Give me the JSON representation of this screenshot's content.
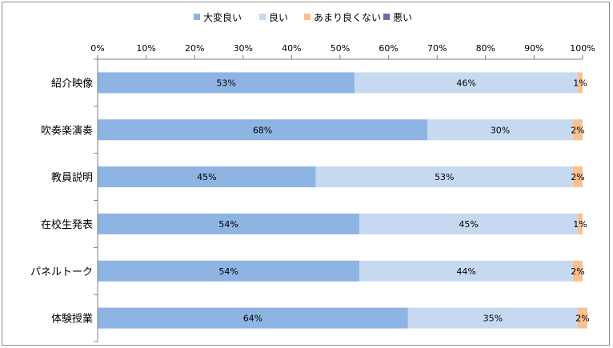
{
  "chart_data": {
    "type": "bar",
    "orientation": "horizontal",
    "stacked": "percent",
    "categories": [
      "紹介映像",
      "吹奏楽演奏",
      "教員説明",
      "在校生発表",
      "パネルトーク",
      "体験授業"
    ],
    "series": [
      {
        "name": "大変良い",
        "color": "#8eb4e3",
        "values": [
          53,
          68,
          45,
          54,
          54,
          64
        ]
      },
      {
        "name": "良い",
        "color": "#c6d9f1",
        "values": [
          46,
          30,
          53,
          45,
          44,
          35
        ]
      },
      {
        "name": "あまり良くない",
        "color": "#fac090",
        "values": [
          1,
          2,
          2,
          1,
          2,
          2
        ]
      },
      {
        "name": "悪い",
        "color": "#8064a2",
        "values": [
          0,
          0,
          0,
          0,
          0,
          0
        ]
      }
    ],
    "data_labels": [
      [
        "53%",
        "68%",
        "45%",
        "54%",
        "54%",
        "64%"
      ],
      [
        "46%",
        "30%",
        "53%",
        "45%",
        "44%",
        "35%"
      ],
      [
        "1%",
        "2%",
        "2%",
        "1%",
        "2%",
        "2%"
      ],
      [
        "",
        "",
        "",
        "",
        "",
        ""
      ]
    ],
    "xticks": [
      "0%",
      "10%",
      "20%",
      "30%",
      "40%",
      "50%",
      "60%",
      "70%",
      "80%",
      "90%",
      "100%"
    ],
    "xlim": [
      0,
      100
    ],
    "title": "",
    "xlabel": "",
    "ylabel": "",
    "legend_position": "top",
    "grid": false
  }
}
